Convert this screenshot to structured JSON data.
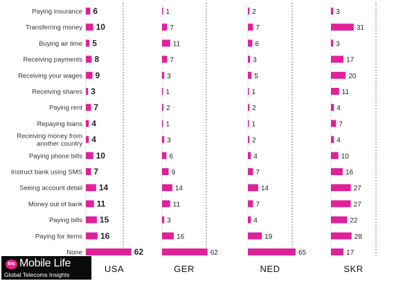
{
  "logo": {
    "badge": "tns",
    "title": "Mobile Life",
    "subtitle": "Global Telecoms Insights"
  },
  "colors": {
    "bar": "#e0219a",
    "gridline": "#555555"
  },
  "chart_data": {
    "type": "bar",
    "orientation": "horizontal",
    "categories": [
      "Paying insurance",
      "Transferring money",
      "Buying air time",
      "Receiving payments",
      "Receiving your wages",
      "Receiving shares",
      "Paying rent",
      "Repaying loans",
      "Receiving money from another country",
      "Paying phone bills",
      "Instruct bank using SMS",
      "Seeing account detail",
      "Money out of bank",
      "Paying bills",
      "Paying for items",
      "None"
    ],
    "series": [
      {
        "name": "USA",
        "values": [
          6,
          10,
          5,
          8,
          9,
          3,
          7,
          4,
          4,
          10,
          7,
          14,
          11,
          15,
          16,
          62
        ]
      },
      {
        "name": "GER",
        "values": [
          1,
          7,
          11,
          7,
          3,
          1,
          2,
          1,
          3,
          6,
          9,
          14,
          11,
          3,
          16,
          62
        ]
      },
      {
        "name": "NED",
        "values": [
          2,
          7,
          6,
          3,
          5,
          1,
          2,
          1,
          2,
          4,
          7,
          14,
          7,
          4,
          19,
          65
        ]
      },
      {
        "name": "SKR",
        "values": [
          3,
          31,
          3,
          17,
          20,
          11,
          4,
          7,
          4,
          10,
          16,
          27,
          27,
          22,
          28,
          17
        ]
      }
    ],
    "xlim": [
      0,
      100
    ],
    "grid": "dashed vertical lines",
    "legend": "none"
  }
}
